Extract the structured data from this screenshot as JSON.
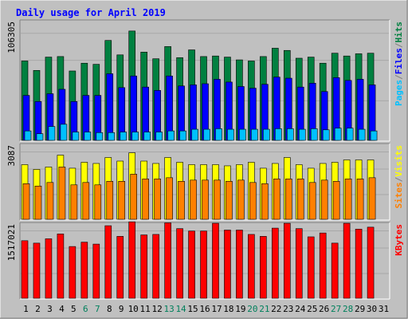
{
  "chart_data": {
    "type": "bar",
    "title": "Daily usage for April 2019",
    "categories": [
      "1",
      "2",
      "3",
      "4",
      "5",
      "6",
      "7",
      "8",
      "9",
      "10",
      "11",
      "12",
      "13",
      "14",
      "15",
      "16",
      "17",
      "18",
      "19",
      "20",
      "21",
      "22",
      "23",
      "24",
      "25",
      "26",
      "27",
      "28",
      "29",
      "30",
      "31"
    ],
    "weekend_days": [
      "6",
      "7",
      "13",
      "14",
      "20",
      "21",
      "27",
      "28"
    ],
    "data_days": 30,
    "panels": [
      {
        "id": "hits-files-pages",
        "ymax": 106305,
        "ymax_label": "106305",
        "legend": [
          "Pages",
          "/",
          "Files",
          "/",
          "Hits"
        ],
        "series": [
          {
            "name": "Hits",
            "color": "#008040",
            "values": [
              71500,
              63000,
              75000,
              75500,
              62500,
              69500,
              68500,
              90000,
              77000,
              98500,
              79500,
              73500,
              84500,
              74500,
              81500,
              75500,
              76000,
              75000,
              72500,
              71500,
              75500,
              83000,
              81000,
              74000,
              75000,
              69500,
              78500,
              76000,
              78000,
              78500
            ]
          },
          {
            "name": "Files",
            "color": "#0000ff",
            "values": [
              40500,
              35000,
              42000,
              46000,
              35000,
              40500,
              40500,
              60000,
              47500,
              58000,
              48000,
              45000,
              58000,
              49000,
              50000,
              51000,
              55000,
              52500,
              48500,
              47000,
              50500,
              57000,
              56000,
              48000,
              51500,
              44000,
              56500,
              54000,
              55000,
              50000
            ]
          },
          {
            "name": "Pages",
            "color": "#00c0ff",
            "values": [
              8500,
              6000,
              12500,
              14500,
              7500,
              7500,
              7000,
              7000,
              7500,
              7500,
              7500,
              7500,
              8500,
              8500,
              10000,
              10000,
              10500,
              10000,
              10000,
              10000,
              10000,
              10500,
              10500,
              10000,
              10500,
              9500,
              11000,
              11000,
              10000,
              8500
            ]
          }
        ]
      },
      {
        "id": "visits-sites",
        "ymax": 3087,
        "ymax_label": "3087",
        "legend": [
          "Sites",
          "/",
          "Visits"
        ],
        "series": [
          {
            "name": "Visits",
            "color": "#ffff00",
            "values": [
              2300,
              2100,
              2200,
              2700,
              2150,
              2400,
              2350,
              2600,
              2450,
              2800,
              2450,
              2350,
              2600,
              2400,
              2300,
              2300,
              2300,
              2250,
              2300,
              2400,
              2150,
              2350,
              2600,
              2300,
              2150,
              2350,
              2400,
              2500,
              2500,
              2500
            ]
          },
          {
            "name": "Sites",
            "color": "#ff8000",
            "values": [
              1500,
              1400,
              1550,
              2200,
              1450,
              1550,
              1450,
              1600,
              1600,
              1900,
              1700,
              1700,
              1750,
              1600,
              1650,
              1650,
              1650,
              1600,
              1650,
              1550,
              1500,
              1700,
              1700,
              1700,
              1550,
              1650,
              1600,
              1700,
              1700,
              1750
            ]
          }
        ]
      },
      {
        "id": "kbytes",
        "ymax": 1517021,
        "ymax_label": "1517021",
        "legend": [
          "KBytes"
        ],
        "series": [
          {
            "name": "KBytes",
            "color": "#ff0000",
            "values": [
              1190000,
              1140000,
              1230000,
              1330000,
              1070000,
              1160000,
              1120000,
              1500000,
              1280000,
              1580000,
              1310000,
              1320000,
              1560000,
              1440000,
              1390000,
              1390000,
              1550000,
              1410000,
              1410000,
              1320000,
              1280000,
              1450000,
              1550000,
              1440000,
              1270000,
              1350000,
              1140000,
              1550000,
              1430000,
              1470000
            ]
          }
        ]
      }
    ]
  },
  "colors": {
    "background": "#c0c0c0",
    "title": "#0000ff",
    "axis_labels": "#000000",
    "weekend_day": "#00805c",
    "weekday": "#000000",
    "frame_light": "#ffffff",
    "frame_dark": "#808080"
  }
}
